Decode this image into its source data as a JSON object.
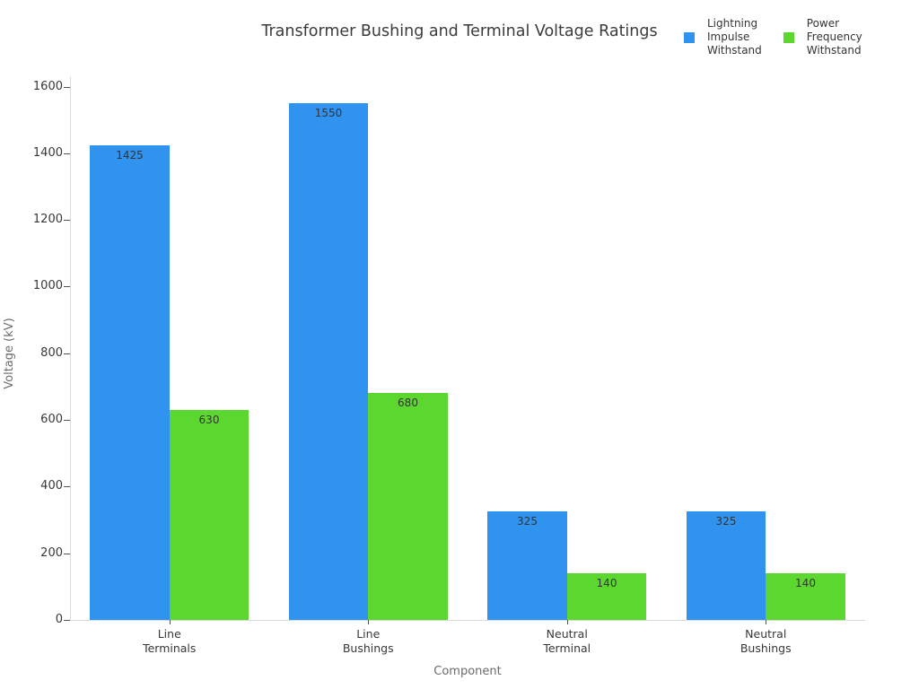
{
  "title": "Transformer Bushing and Terminal Voltage Ratings",
  "legend": {
    "items": [
      {
        "label": "Lightning\nImpulse\nWithstand",
        "color": "#3093f0"
      },
      {
        "label": "Power\nFrequency\nWithstand",
        "color": "#5cd730"
      }
    ]
  },
  "chart_data": {
    "type": "bar",
    "title": "Transformer Bushing and Terminal Voltage Ratings",
    "categories": [
      "Line\nTerminals",
      "Line\nBushings",
      "Neutral\nTerminal",
      "Neutral\nBushings"
    ],
    "series": [
      {
        "name": "Lightning Impulse Withstand",
        "color": "#3093f0",
        "values": [
          1425,
          1550,
          325,
          325
        ]
      },
      {
        "name": "Power Frequency Withstand",
        "color": "#5cd730",
        "values": [
          630,
          680,
          140,
          140
        ]
      }
    ],
    "bar_value_labels": [
      [
        "1425",
        "1550",
        "325",
        "325"
      ],
      [
        "630",
        "680",
        "140",
        "140"
      ]
    ],
    "xlabel": "Component",
    "ylabel": "Voltage (kV)",
    "ylim": [
      0,
      1600
    ],
    "yticks": [
      "0",
      "200",
      "400",
      "600",
      "800",
      "1000",
      "1200",
      "1400",
      "1600"
    ],
    "grid": false,
    "legend_position": "top-right"
  },
  "colors": {
    "background": "#ffffff",
    "series_blue": "#3093f0",
    "series_green": "#5cd730",
    "spine": "#d9d9d9",
    "tick": "#555555",
    "text_dark": "#383838",
    "text_muted": "#6b6b6b"
  }
}
